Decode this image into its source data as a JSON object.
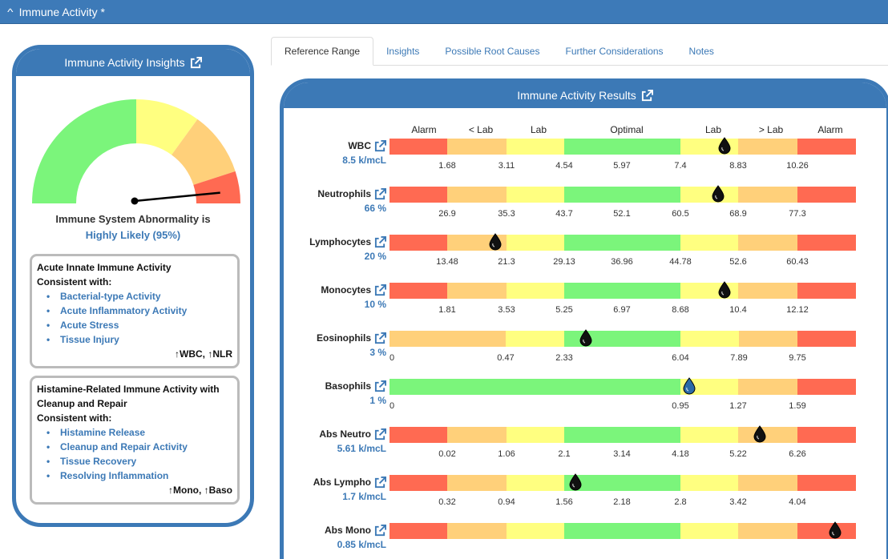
{
  "window": {
    "title": "Immune Activity *"
  },
  "insights": {
    "title": "Immune Activity Insights",
    "gauge_value": 0.95,
    "abnormality_label": "Immune System Abnormality is",
    "abnormality_value": "Highly Likely (95%)",
    "boxes": [
      {
        "title": "Acute Innate Immune Activity",
        "subtitle": "Consistent with:",
        "items": [
          "Bacterial-type Activity",
          "Acute Inflammatory Activity",
          "Acute Stress",
          "Tissue Injury"
        ],
        "footer": "↑WBC, ↑NLR"
      },
      {
        "title": "Histamine-Related Immune Activity with Cleanup and Repair",
        "subtitle": "Consistent with:",
        "items": [
          "Histamine Release",
          "Cleanup and Repair Activity",
          "Tissue Recovery",
          "Resolving Inflammation"
        ],
        "footer": "↑Mono, ↑Baso"
      }
    ]
  },
  "tabs": [
    {
      "label": "Reference Range",
      "active": true
    },
    {
      "label": "Insights",
      "active": false
    },
    {
      "label": "Possible Root Causes",
      "active": false
    },
    {
      "label": "Further Considerations",
      "active": false
    },
    {
      "label": "Notes",
      "active": false
    }
  ],
  "results": {
    "title": "Immune Activity Results",
    "headers": [
      "Alarm",
      "< Lab",
      "Lab",
      "Optimal",
      "Lab",
      "> Lab",
      "Alarm"
    ],
    "colors": {
      "alarm": "#ff6a52",
      "outside_lab": "#ffd07a",
      "lab": "#ffff80",
      "optimal": "#7bf57b"
    },
    "rows": [
      {
        "name": "WBC",
        "value": "8.5 k/mcL",
        "ticks": [
          "1.68",
          "3.11",
          "4.54",
          "5.97",
          "7.4",
          "8.83",
          "10.26"
        ],
        "marker": 8.5,
        "layout": "standard"
      },
      {
        "name": "Neutrophils",
        "value": "66 %",
        "ticks": [
          "26.9",
          "35.3",
          "43.7",
          "52.1",
          "60.5",
          "68.9",
          "77.3"
        ],
        "marker": 66,
        "layout": "standard"
      },
      {
        "name": "Lymphocytes",
        "value": "20 %",
        "ticks": [
          "13.48",
          "21.3",
          "29.13",
          "36.96",
          "44.78",
          "52.6",
          "60.43"
        ],
        "marker": 20,
        "layout": "standard"
      },
      {
        "name": "Monocytes",
        "value": "10 %",
        "ticks": [
          "1.81",
          "3.53",
          "5.25",
          "6.97",
          "8.68",
          "10.4",
          "12.12"
        ],
        "marker": 10,
        "layout": "standard"
      },
      {
        "name": "Eosinophils",
        "value": "3 %",
        "ticks": [
          "0",
          "0.47",
          "2.33",
          "6.04",
          "7.89",
          "9.75"
        ],
        "marker": 3,
        "layout": "eos"
      },
      {
        "name": "Basophils",
        "value": "1 %",
        "ticks": [
          "0",
          "0.95",
          "1.27",
          "1.59"
        ],
        "marker": 1,
        "layout": "baso"
      },
      {
        "name": "Abs Neutro",
        "value": "5.61 k/mcL",
        "ticks": [
          "0.02",
          "1.06",
          "2.1",
          "3.14",
          "4.18",
          "5.22",
          "6.26"
        ],
        "marker": 5.61,
        "layout": "standard"
      },
      {
        "name": "Abs Lympho",
        "value": "1.7 k/mcL",
        "ticks": [
          "0.32",
          "0.94",
          "1.56",
          "2.18",
          "2.8",
          "3.42",
          "4.04"
        ],
        "marker": 1.7,
        "layout": "standard"
      },
      {
        "name": "Abs Mono",
        "value": "0.85 k/mcL",
        "ticks": [],
        "marker": 0.85,
        "layout": "standard"
      }
    ]
  }
}
